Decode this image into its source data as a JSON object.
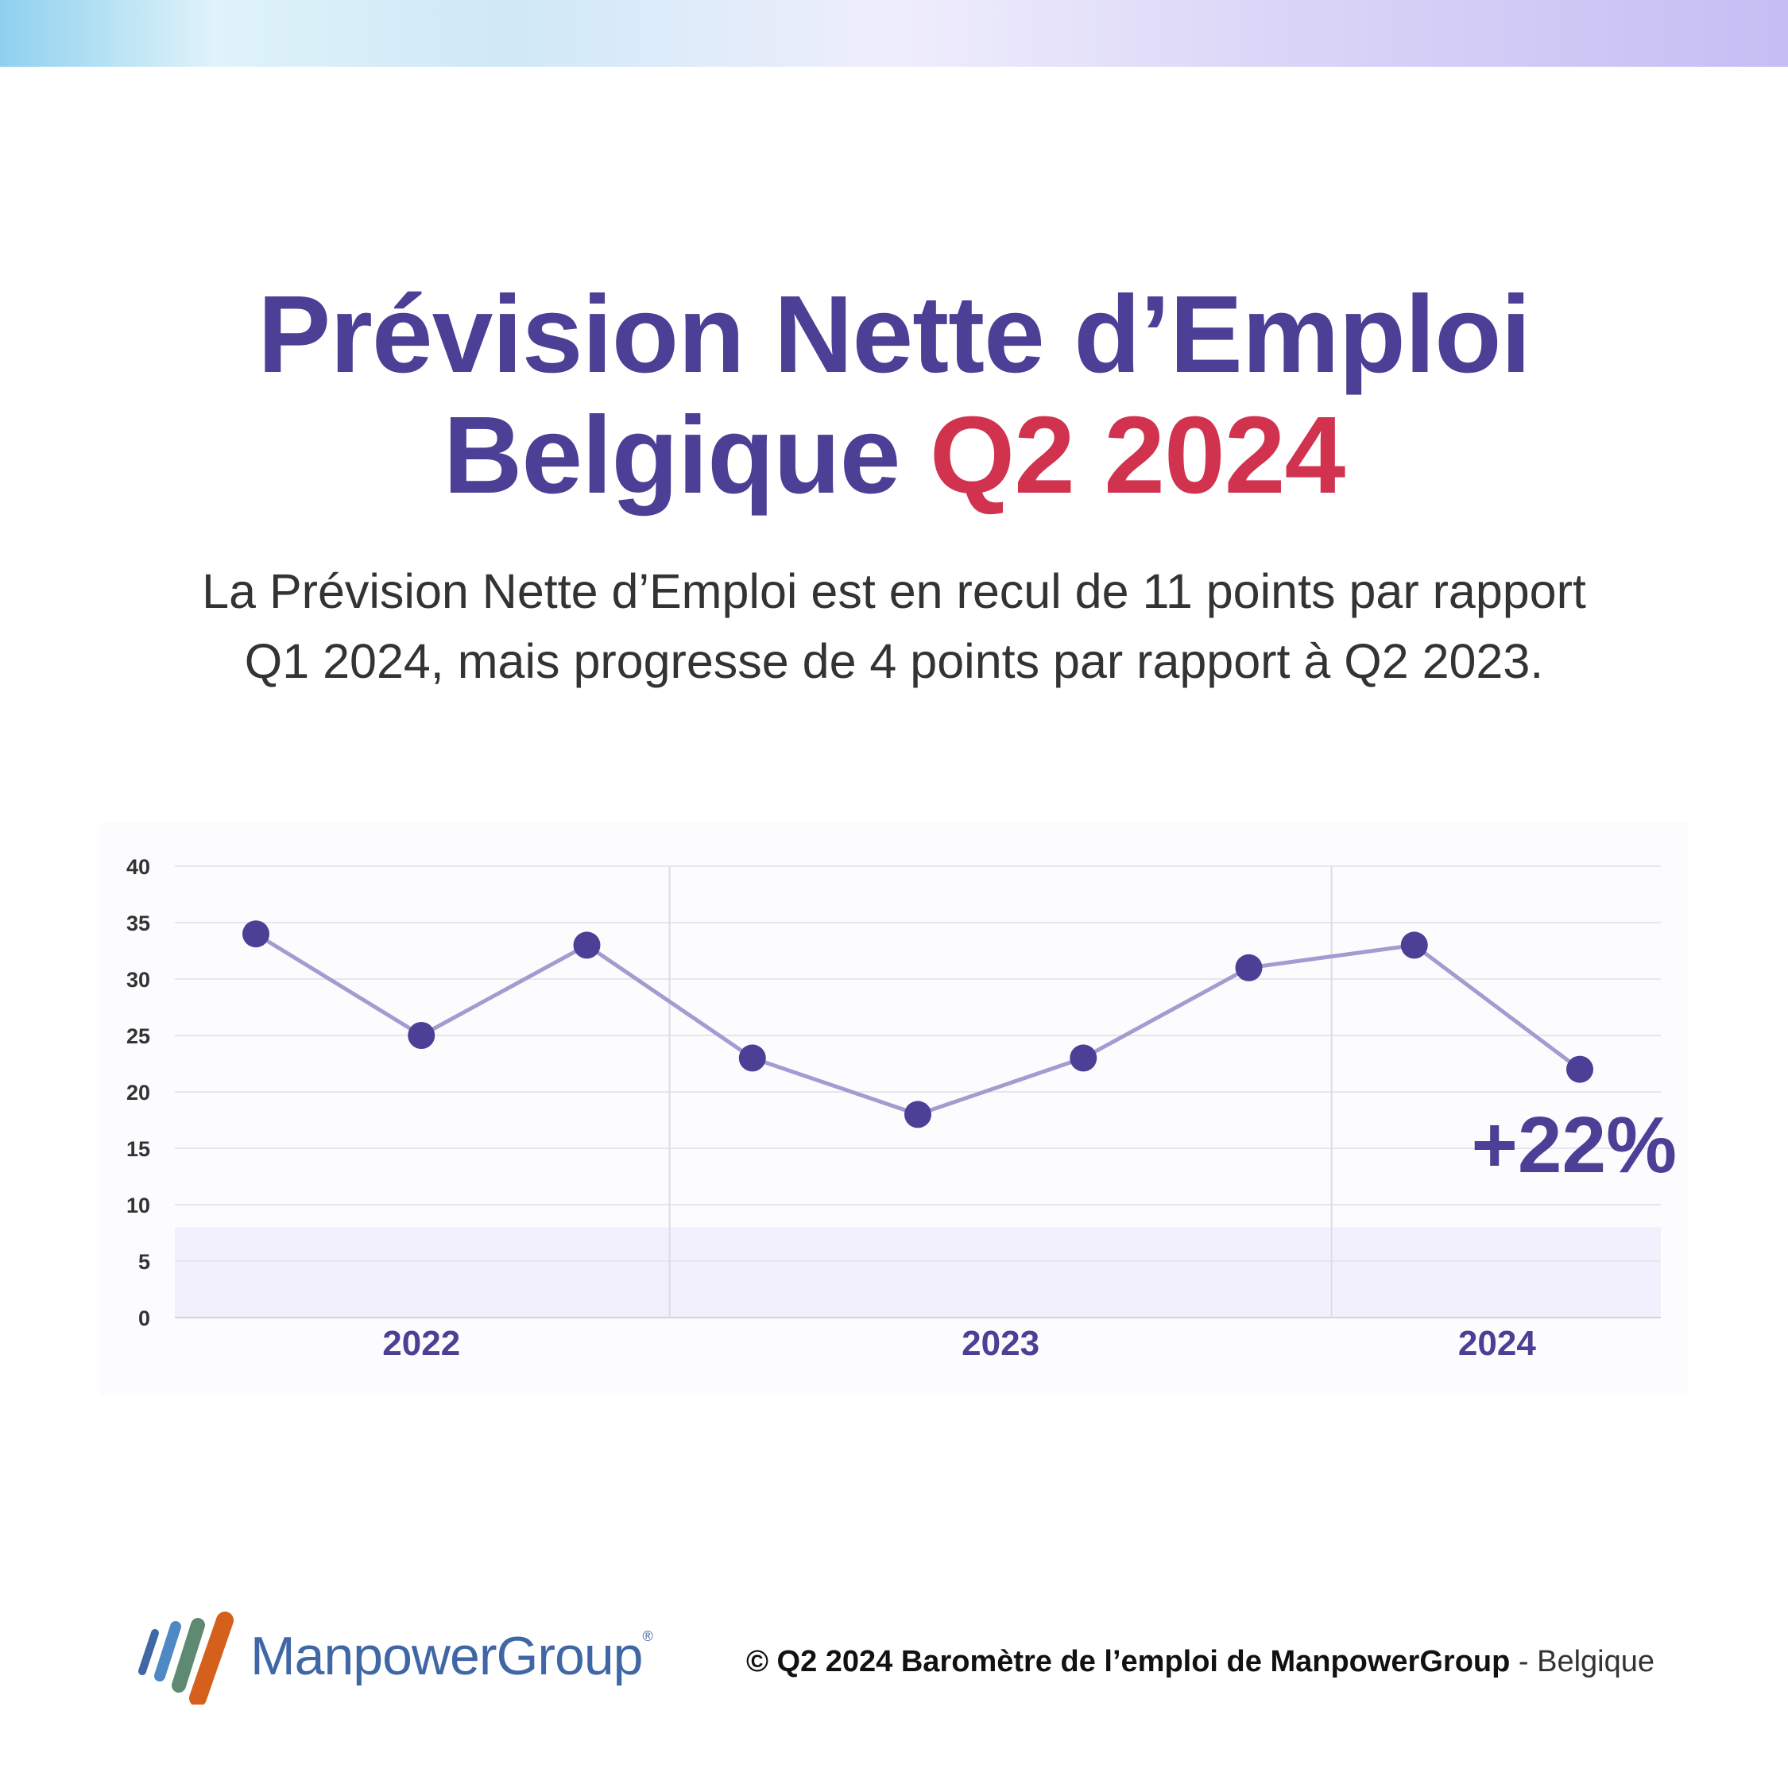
{
  "header": {
    "title_line1": "Prévision Nette d’Emploi",
    "title_line2_main": "Belgique",
    "title_line2_accent": "Q2 2024",
    "subtitle_line1": "La Prévision Nette d’Emploi est en recul de 11 points par rapport",
    "subtitle_line2": "Q1 2024, mais progresse de 4 points par rapport à Q2 2023."
  },
  "colors": {
    "title": "#4b3f96",
    "accent": "#d1334f",
    "series": "#4b3f96",
    "line": "#a49bd0",
    "band": "#f2f0fc"
  },
  "chart_data": {
    "type": "line",
    "title": "",
    "xlabel": "",
    "ylabel": "",
    "ylim": [
      0,
      40
    ],
    "yticks": [
      "0",
      "5",
      "10",
      "15",
      "20",
      "25",
      "30",
      "35",
      "40"
    ],
    "grid": true,
    "year_groups": [
      {
        "label": "2022",
        "points": 3
      },
      {
        "label": "2023",
        "points": 4
      },
      {
        "label": "2024",
        "points": 2
      }
    ],
    "series": [
      {
        "values": [
          34,
          25,
          33,
          23,
          18,
          23,
          31,
          33,
          22
        ]
      }
    ],
    "annotation": "+22%"
  },
  "footer": {
    "logo_text": "ManpowerGroup",
    "logo_reg": "®",
    "copyright_bold": "© Q2 2024 Baromètre de l’emploi de ManpowerGroup",
    "copyright_region": " - Belgique"
  }
}
